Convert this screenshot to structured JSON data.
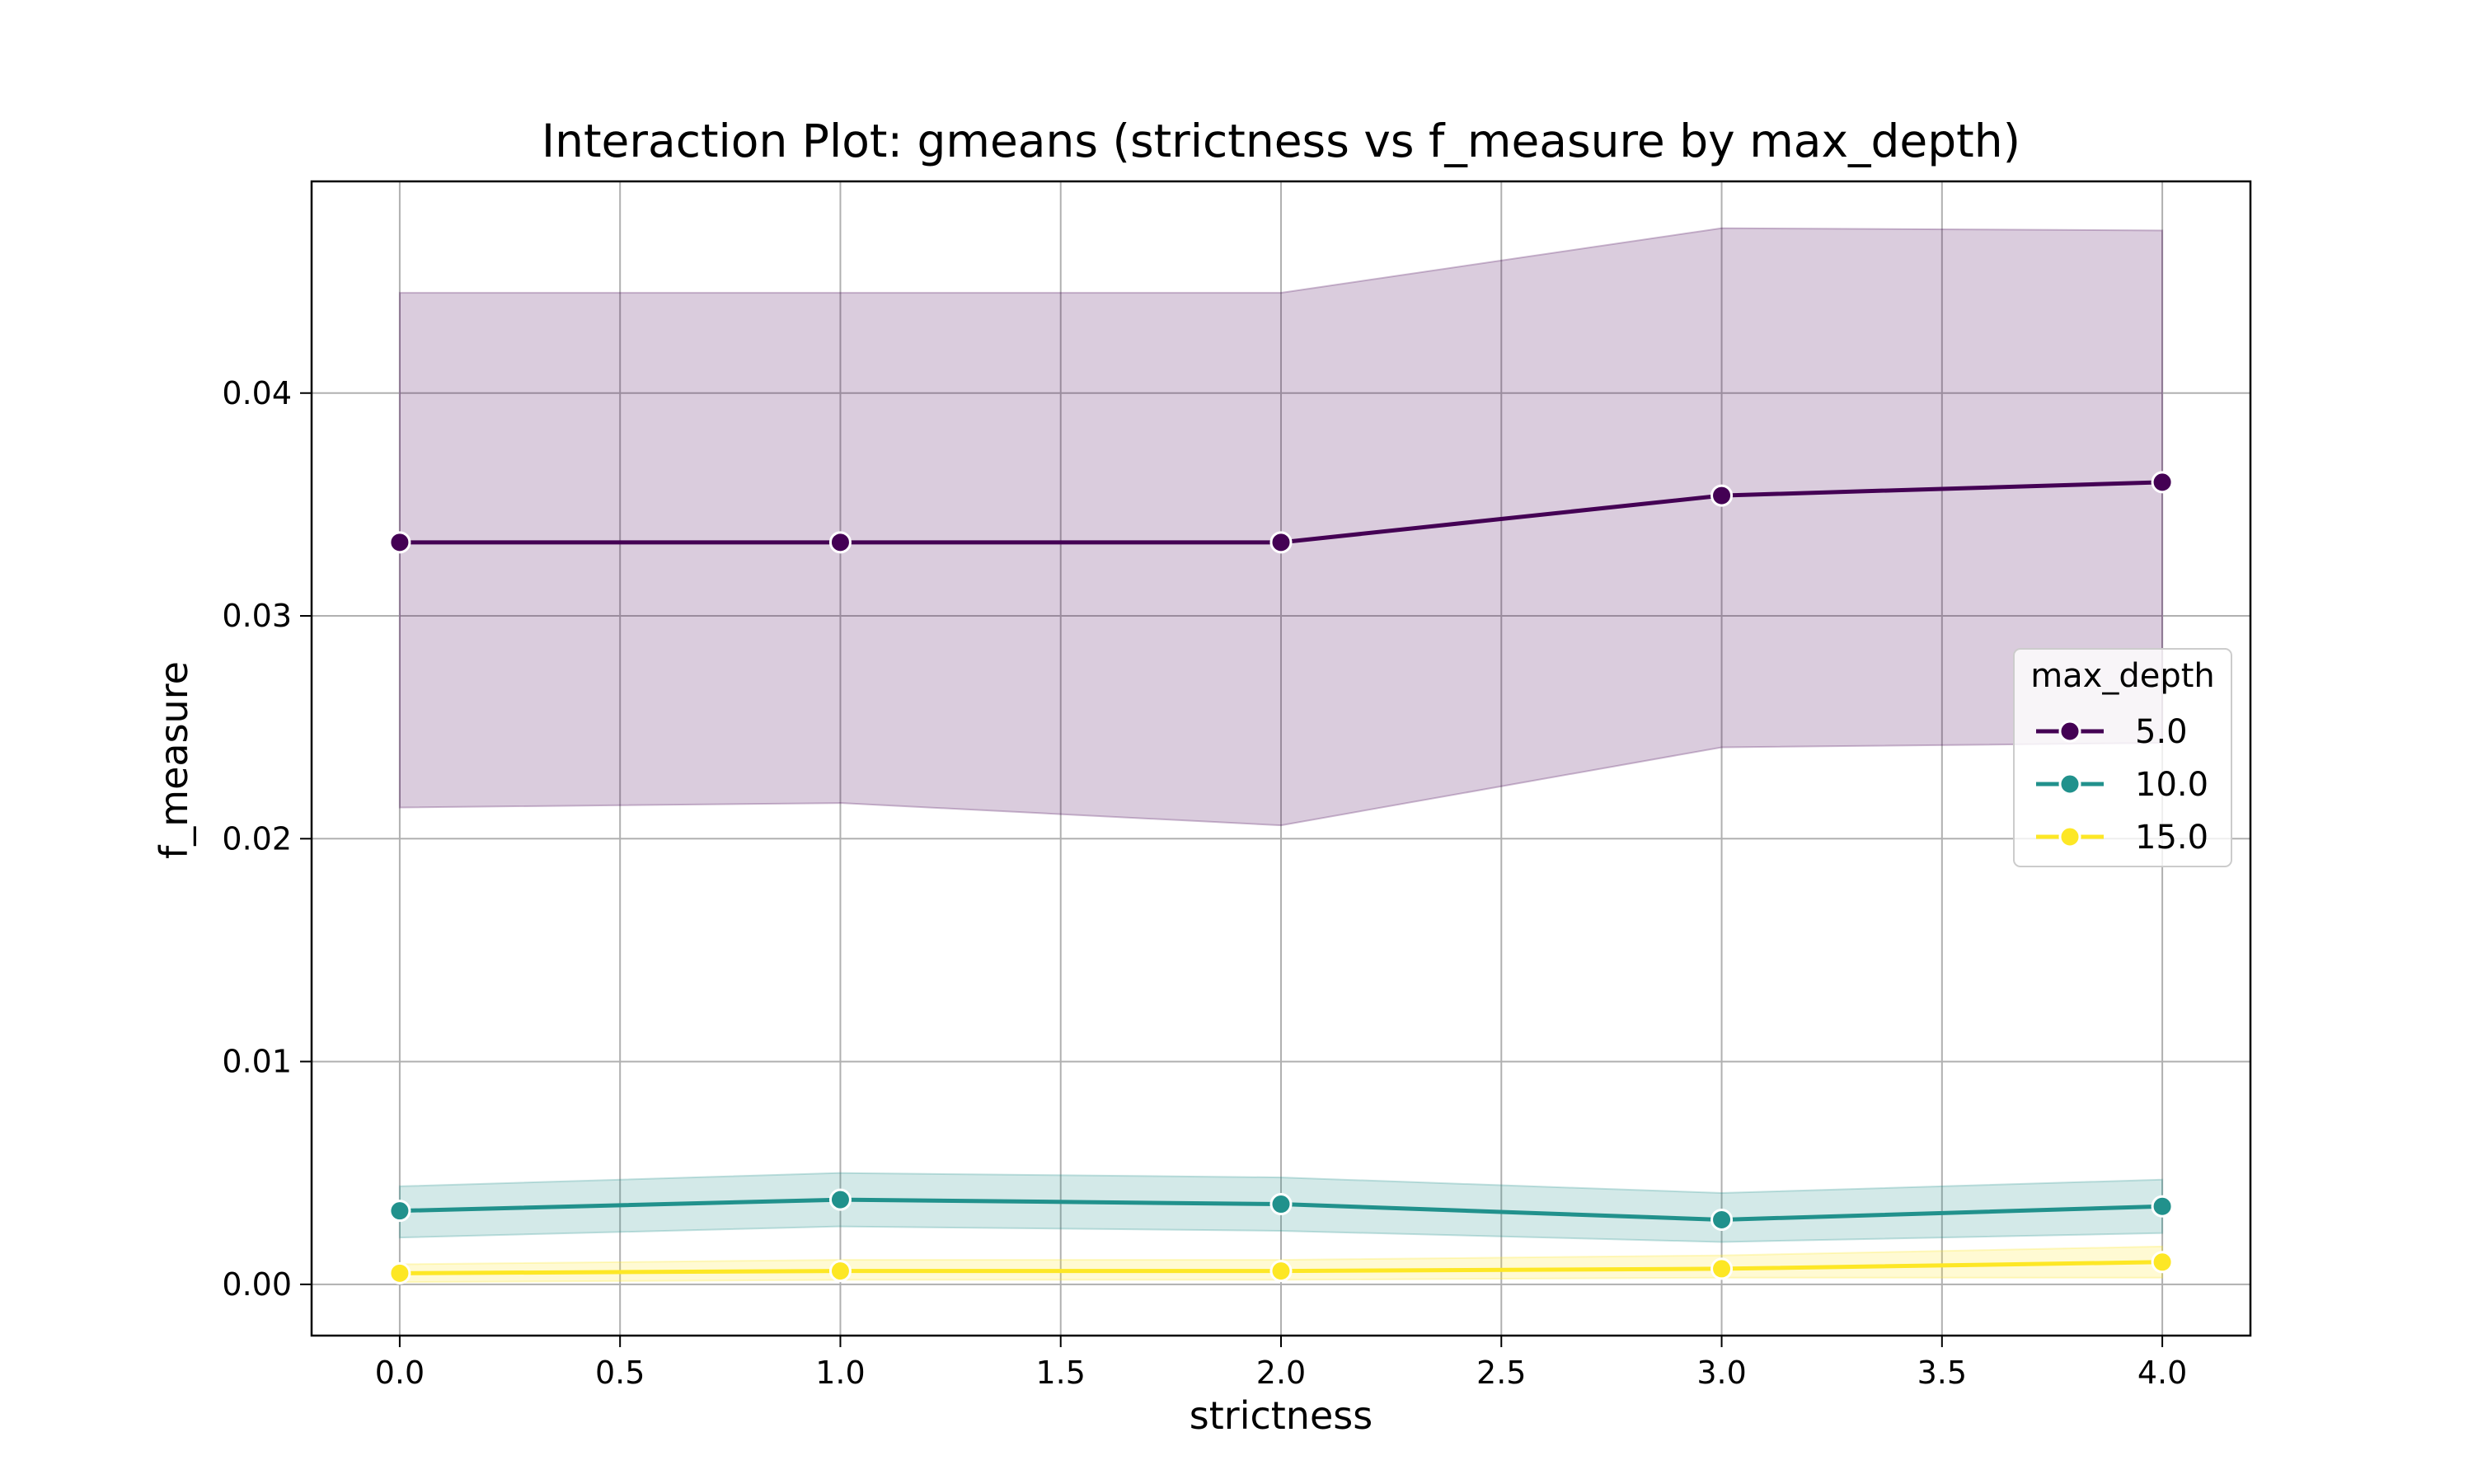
{
  "chart_data": {
    "type": "line",
    "title": "Interaction Plot: gmeans (strictness vs f_measure by max_depth)",
    "xlabel": "strictness",
    "ylabel": "f_measure",
    "x": [
      0,
      1,
      2,
      3,
      4
    ],
    "xlim": [
      -0.2,
      4.2
    ],
    "ylim": [
      -0.0023,
      0.0495
    ],
    "xticks": [
      0.0,
      0.5,
      1.0,
      1.5,
      2.0,
      2.5,
      3.0,
      3.5,
      4.0
    ],
    "xtick_labels": [
      "0.0",
      "0.5",
      "1.0",
      "1.5",
      "2.0",
      "2.5",
      "3.0",
      "3.5",
      "4.0"
    ],
    "yticks": [
      0.0,
      0.01,
      0.02,
      0.03,
      0.04
    ],
    "ytick_labels": [
      "0.00",
      "0.01",
      "0.02",
      "0.03",
      "0.04"
    ],
    "grid": true,
    "legend": {
      "title": "max_depth",
      "placement": "center-right"
    },
    "series": [
      {
        "name": "5.0",
        "color": "#440154",
        "values": [
          0.0333,
          0.0333,
          0.0333,
          0.0354,
          0.036
        ],
        "ci_lower": [
          0.0214,
          0.0216,
          0.0206,
          0.0241,
          0.0243
        ],
        "ci_upper": [
          0.0445,
          0.0445,
          0.0445,
          0.0474,
          0.0473
        ]
      },
      {
        "name": "10.0",
        "color": "#21918c",
        "values": [
          0.0033,
          0.0038,
          0.0036,
          0.0029,
          0.0035
        ],
        "ci_lower": [
          0.0021,
          0.0026,
          0.0024,
          0.0019,
          0.0023
        ],
        "ci_upper": [
          0.0044,
          0.005,
          0.0048,
          0.0041,
          0.0047
        ]
      },
      {
        "name": "15.0",
        "color": "#fde725",
        "values": [
          0.0005,
          0.0006,
          0.0006,
          0.0007,
          0.001
        ],
        "ci_lower": [
          0.0001,
          0.0002,
          0.0002,
          0.0003,
          0.0003
        ],
        "ci_upper": [
          0.0009,
          0.0011,
          0.0011,
          0.0013,
          0.0017
        ]
      }
    ]
  }
}
